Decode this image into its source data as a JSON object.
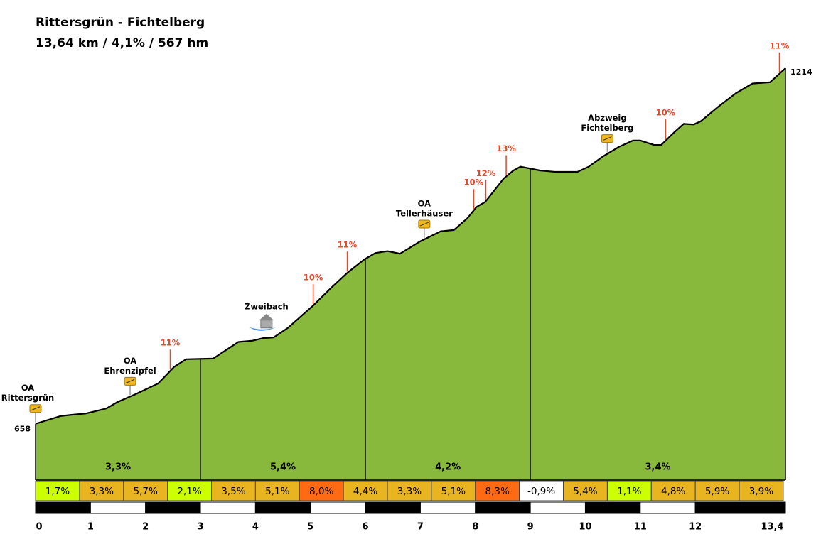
{
  "chart_data": {
    "type": "area",
    "title": "Rittersgrün - Fichtelberg",
    "subtitle": "13,64 km / 4,1%  / 567 hm",
    "color": "#88b93c",
    "x": [
      0,
      0.45,
      0.65,
      0.91,
      1.29,
      1.49,
      1.81,
      2.23,
      2.52,
      2.74,
      3.23,
      3.69,
      3.95,
      4.14,
      4.33,
      4.59,
      5.05,
      5.37,
      5.67,
      5.98,
      6.18,
      6.4,
      6.63,
      6.99,
      7.37,
      7.61,
      7.85,
      8.02,
      8.18,
      8.51,
      8.69,
      8.82,
      9.18,
      9.44,
      9.86,
      10.06,
      10.32,
      10.61,
      10.87,
      11.0,
      11.25,
      11.38,
      11.62,
      11.79,
      11.97,
      12.1,
      12.42,
      12.74,
      13.04,
      13.36,
      13.64
    ],
    "values": [
      658,
      670,
      672,
      674,
      682,
      692,
      704,
      721,
      747,
      759,
      760,
      786,
      788,
      792,
      793,
      808,
      843,
      870,
      894,
      915,
      925,
      928,
      924,
      943,
      959,
      961,
      979,
      997,
      1005,
      1041,
      1054,
      1060,
      1054,
      1052,
      1052,
      1060,
      1076,
      1091,
      1101,
      1101,
      1094,
      1094,
      1114,
      1127,
      1126,
      1131,
      1154,
      1175,
      1190,
      1192,
      1214
    ],
    "xlim": [
      0,
      13.64
    ],
    "ylim": [
      570,
      1254
    ],
    "xticks": [
      0,
      1,
      2,
      3,
      4,
      5,
      6,
      7,
      8,
      9,
      10,
      11,
      12,
      {
        "value": 13.4,
        "label": "13,4"
      }
    ],
    "gradient_annotations": [
      {
        "x": 2.45,
        "label": "11%"
      },
      {
        "x": 5.05,
        "label": "10%"
      },
      {
        "x": 5.67,
        "label": "11%"
      },
      {
        "x": 7.97,
        "label": "10%"
      },
      {
        "x": 8.19,
        "label": "12%"
      },
      {
        "x": 8.56,
        "label": "13%"
      },
      {
        "x": 11.46,
        "label": "10%"
      },
      {
        "x": 13.53,
        "label": "11%"
      }
    ],
    "places": [
      {
        "x": 0,
        "name": [
          "OA",
          "Rittersgrün"
        ]
      },
      {
        "x": 1.72,
        "name": [
          "OA",
          "Ehrenzipfel"
        ]
      },
      {
        "x": 4.2,
        "name": [
          "Zweibach"
        ]
      },
      {
        "x": 7.07,
        "name": [
          "OA",
          "Tellerhäuser"
        ]
      },
      {
        "x": 10.4,
        "name": [
          "Abzweig",
          "Fichtelberg"
        ]
      }
    ],
    "sections": [
      {
        "from": 0,
        "to": 3,
        "value": 3.3,
        "label": "3,3%"
      },
      {
        "from": 3,
        "to": 6,
        "value": 5.4,
        "label": "5,4%"
      },
      {
        "from": 6,
        "to": 9,
        "value": 4.2,
        "label": "4,2%"
      },
      {
        "from": 9,
        "to": 13.64,
        "value": 3.4,
        "label": "3,4%"
      }
    ],
    "segments": {
      "bins": [
        0,
        0.8,
        1.6,
        2.4,
        3.2,
        4.0,
        4.8,
        5.6,
        6.4,
        7.2,
        8.0,
        8.8,
        9.6,
        10.4,
        11.2,
        12.0,
        12.8,
        13.6
      ],
      "values": [
        1.7,
        3.3,
        5.7,
        2.1,
        3.5,
        5.1,
        8.0,
        4.4,
        3.3,
        5.1,
        8.3,
        -0.9,
        5.4,
        1.1,
        4.8,
        5.9,
        3.9
      ],
      "value_labels": [
        "1,7%",
        "3,3%",
        "5,7%",
        "2,1%",
        "3,5%",
        "5,1%",
        "8,0%",
        "4,4%",
        "3,3%",
        "5,1%",
        "8,3%",
        "-0,9%",
        "5,4%",
        "1,1%",
        "4,8%",
        "5,9%",
        "3,9%"
      ],
      "colors": [
        "#ccff00",
        "#e8b520",
        "#e8b520",
        "#ccff00",
        "#e8b520",
        "#e8b520",
        "#ff6a13",
        "#e8b520",
        "#e8b520",
        "#e8b520",
        "#ff6a13",
        "#ffffff",
        "#e8b520",
        "#ccff00",
        "#e8b520",
        "#e8b520",
        "#e8b520"
      ]
    }
  }
}
